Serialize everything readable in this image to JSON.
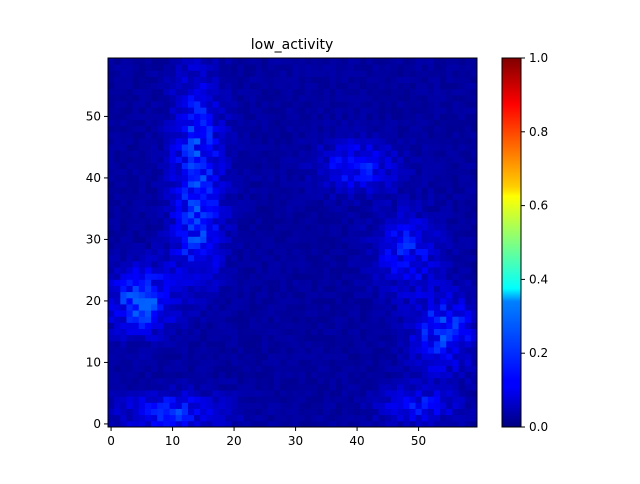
{
  "chart_data": {
    "type": "heatmap",
    "title": "low_activity",
    "xlabel": "",
    "ylabel": "",
    "grid_size": [
      60,
      60
    ],
    "x_range": [
      -0.5,
      59.5
    ],
    "y_range": [
      -0.5,
      59.5
    ],
    "x_ticks": [
      0,
      10,
      20,
      30,
      40,
      50
    ],
    "y_ticks": [
      0,
      10,
      20,
      30,
      40,
      50
    ],
    "colormap": "jet",
    "color_range": [
      0.0,
      1.0
    ],
    "colorbar_ticks": [
      "0.0",
      "0.2",
      "0.4",
      "0.6",
      "0.8",
      "1.0"
    ],
    "colorbar_values": [
      0.0,
      0.2,
      0.4,
      0.6,
      0.8,
      1.0
    ],
    "intensity_regions": [
      {
        "center": [
          14,
          45
        ],
        "spread": [
          4,
          12
        ],
        "peak": 0.12
      },
      {
        "center": [
          14,
          30
        ],
        "spread": [
          4,
          8
        ],
        "peak": 0.1
      },
      {
        "center": [
          5,
          20
        ],
        "spread": [
          5,
          5
        ],
        "peak": 0.16
      },
      {
        "center": [
          10,
          2
        ],
        "spread": [
          8,
          3
        ],
        "peak": 0.12
      },
      {
        "center": [
          40,
          42
        ],
        "spread": [
          6,
          4
        ],
        "peak": 0.1
      },
      {
        "center": [
          48,
          28
        ],
        "spread": [
          5,
          6
        ],
        "peak": 0.1
      },
      {
        "center": [
          54,
          15
        ],
        "spread": [
          5,
          6
        ],
        "peak": 0.13
      },
      {
        "center": [
          50,
          3
        ],
        "spread": [
          6,
          3
        ],
        "peak": 0.09
      }
    ],
    "background_level": 0.03,
    "max_value_observed": 0.22
  }
}
